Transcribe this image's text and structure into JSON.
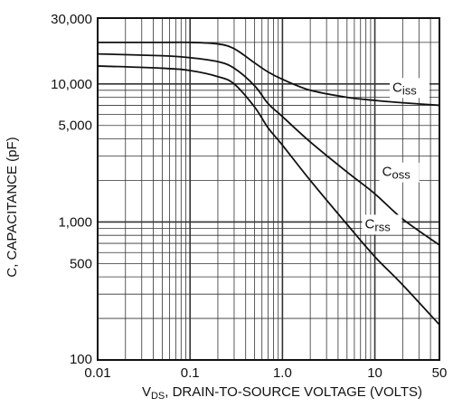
{
  "chart_data": {
    "type": "line",
    "title": "",
    "xlabel": "V_DS, DRAIN-TO-SOURCE VOLTAGE (VOLTS)",
    "xlabel_parts": {
      "main": "V",
      "sub": "DS",
      "rest": ", DRAIN-TO-SOURCE VOLTAGE (VOLTS)"
    },
    "ylabel": "C, CAPACITANCE (pF)",
    "xscale": "log",
    "yscale": "log",
    "xlim": [
      0.01,
      50
    ],
    "ylim": [
      100,
      30000
    ],
    "grid": true,
    "x_ticks": [
      {
        "value": 0.01,
        "label": "0.01"
      },
      {
        "value": 0.1,
        "label": "0.1"
      },
      {
        "value": 1.0,
        "label": "1.0"
      },
      {
        "value": 10,
        "label": "10"
      },
      {
        "value": 50,
        "label": "50"
      }
    ],
    "y_ticks": [
      {
        "value": 100,
        "label": "100"
      },
      {
        "value": 500,
        "label": "500"
      },
      {
        "value": 1000,
        "label": "1,000"
      },
      {
        "value": 5000,
        "label": "5,000"
      },
      {
        "value": 10000,
        "label": "10,000"
      },
      {
        "value": 30000,
        "label": "30,000"
      }
    ],
    "series": [
      {
        "name": "Ciss",
        "label_main": "C",
        "label_sub": "iss",
        "x": [
          0.01,
          0.05,
          0.1,
          0.2,
          0.3,
          0.5,
          0.7,
          1.0,
          2.0,
          5.0,
          10,
          20,
          50
        ],
        "y": [
          20000,
          20000,
          20000,
          19500,
          18000,
          14200,
          12200,
          10800,
          9000,
          8000,
          7600,
          7300,
          7000
        ]
      },
      {
        "name": "Coss",
        "label_main": "C",
        "label_sub": "oss",
        "x": [
          0.01,
          0.05,
          0.1,
          0.2,
          0.3,
          0.5,
          0.7,
          1.0,
          2.0,
          5.0,
          10,
          20,
          50
        ],
        "y": [
          16500,
          16000,
          15500,
          14500,
          13000,
          9700,
          7200,
          5800,
          3800,
          2300,
          1600,
          1050,
          680
        ]
      },
      {
        "name": "Crss",
        "label_main": "C",
        "label_sub": "rss",
        "x": [
          0.01,
          0.05,
          0.1,
          0.2,
          0.3,
          0.5,
          0.7,
          1.0,
          2.0,
          5.0,
          10,
          20,
          50
        ],
        "y": [
          13500,
          13000,
          12500,
          11300,
          10000,
          6800,
          4800,
          3600,
          2000,
          960,
          560,
          350,
          180
        ]
      }
    ]
  }
}
